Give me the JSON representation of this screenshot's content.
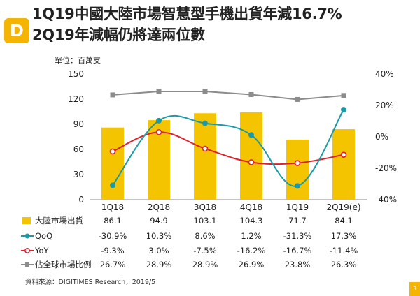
{
  "header": {
    "title_line1": "1Q19中國大陸市場智慧型手機出貨年減16.7%",
    "title_line2": "2Q19年減幅仍將達兩位數",
    "logo_letter": "D"
  },
  "chart_data": {
    "type": "bar+line",
    "title": "1Q19中國大陸市場智慧型手機出貨年減16.7% 2Q19年減幅仍將達兩位數",
    "unit_label": "單位：百萬支",
    "categories": [
      "1Q18",
      "2Q18",
      "3Q18",
      "4Q18",
      "1Q19",
      "2Q19(e)"
    ],
    "left_axis": {
      "min": 0,
      "max": 150,
      "ticks": [
        0,
        30,
        60,
        90,
        120,
        150
      ]
    },
    "right_axis": {
      "min": -40,
      "max": 40,
      "ticks": [
        "40%",
        "20%",
        "0%",
        "-20%",
        "-40%"
      ]
    },
    "bars": {
      "name": "大陸市場出貨",
      "color": "#f5c400",
      "values": [
        86.1,
        94.9,
        103.1,
        104.3,
        71.7,
        84.1
      ],
      "labels": [
        "86.1",
        "94.9",
        "103.1",
        "104.3",
        "71.7",
        "84.1"
      ]
    },
    "lines": [
      {
        "name": "QoQ",
        "color": "#1a9aa6",
        "marker": "filled-circle",
        "values": [
          -30.9,
          10.3,
          8.6,
          1.2,
          -31.3,
          17.3
        ],
        "labels": [
          "-30.9%",
          "10.3%",
          "8.6%",
          "1.2%",
          "-31.3%",
          "17.3%"
        ]
      },
      {
        "name": "YoY",
        "color": "#e0202a",
        "marker": "open-circle",
        "values": [
          -9.3,
          3.0,
          -7.5,
          -16.2,
          -16.7,
          -11.4
        ],
        "labels": [
          "-9.3%",
          "3.0%",
          "-7.5%",
          "-16.2%",
          "-16.7%",
          "-11.4%"
        ]
      },
      {
        "name": "佔全球市場比例",
        "color": "#8c8c8c",
        "marker": "square",
        "values": [
          26.7,
          28.9,
          28.9,
          26.9,
          23.8,
          26.3
        ],
        "labels": [
          "26.7%",
          "28.9%",
          "28.9%",
          "26.9%",
          "23.8%",
          "26.3%"
        ]
      }
    ]
  },
  "footer": {
    "source": "資料來源：DIGITIMES Research，2019/5",
    "page_number": "3"
  }
}
